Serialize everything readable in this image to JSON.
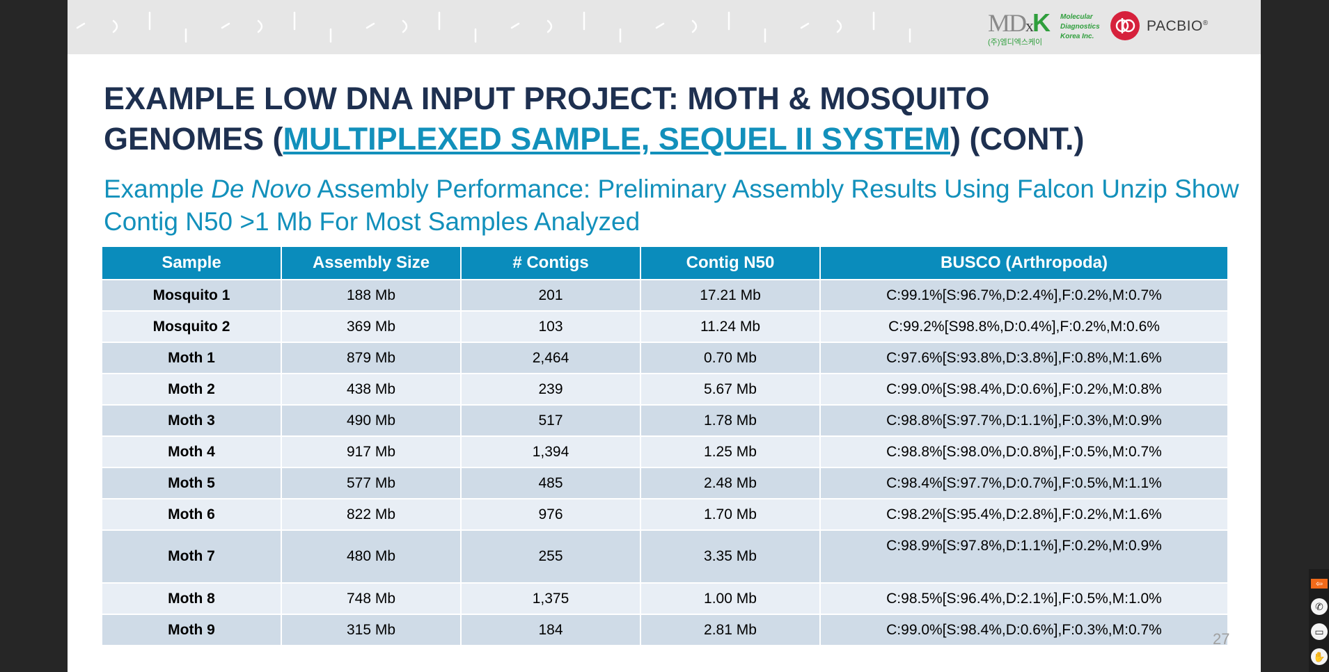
{
  "header": {
    "mdxk_logo": {
      "mark_md": "MD",
      "mark_x": "x",
      "mark_k": "K",
      "line1": "Molecular",
      "line2": "Diagnostics",
      "line3": "Korea Inc.",
      "korean": "(주)엠디엑스케이"
    },
    "pacbio_logo": {
      "text": "PACBIO",
      "reg": "®",
      "icon": "pacbio-circle-logo"
    }
  },
  "slide": {
    "title_line1": "EXAMPLE LOW DNA INPUT PROJECT:  MOTH & MOSQUITO",
    "title_line2_pre": "GENOMES (",
    "title_link": "MULTIPLEXED SAMPLE, SEQUEL II SYSTEM",
    "title_line2_post": ") (CONT.)",
    "subtitle_pre": "Example ",
    "subtitle_em": "De Novo",
    "subtitle_post": " Assembly Performance:  Preliminary Assembly Results Using Falcon Unzip Show Contig N50 >1 Mb For Most Samples Analyzed",
    "page_number": "27"
  },
  "table": {
    "headers": [
      "Sample",
      "Assembly Size",
      "# Contigs",
      "Contig N50",
      "BUSCO (Arthropoda)"
    ],
    "rows": [
      [
        "Mosquito 1",
        "188 Mb",
        "201",
        "17.21 Mb",
        "C:99.1%[S:96.7%,D:2.4%],F:0.2%,M:0.7%"
      ],
      [
        "Mosquito 2",
        "369 Mb",
        "103",
        "11.24 Mb",
        "C:99.2%[S98.8%,D:0.4%],F:0.2%,M:0.6%"
      ],
      [
        "Moth 1",
        "879 Mb",
        "2,464",
        "0.70 Mb",
        "C:97.6%[S:93.8%,D:3.8%],F:0.8%,M:1.6%"
      ],
      [
        "Moth 2",
        "438 Mb",
        "239",
        "5.67 Mb",
        "C:99.0%[S:98.4%,D:0.6%],F:0.2%,M:0.8%"
      ],
      [
        "Moth 3",
        "490 Mb",
        "517",
        "1.78 Mb",
        "C:98.8%[S:97.7%,D:1.1%],F:0.3%,M:0.9%"
      ],
      [
        "Moth 4",
        "917 Mb",
        "1,394",
        "1.25 Mb",
        "C:98.8%[S:98.0%,D:0.8%],F:0.5%,M:0.7%"
      ],
      [
        "Moth 5",
        "577 Mb",
        "485",
        "2.48 Mb",
        "C:98.4%[S:97.7%,D:0.7%],F:0.5%,M:1.1%"
      ],
      [
        "Moth 6",
        "822 Mb",
        "976",
        "1.70 Mb",
        "C:98.2%[S:95.4%,D:2.8%],F:0.2%,M:1.6%"
      ],
      [
        "Moth 7",
        "480 Mb",
        "255",
        "3.35 Mb",
        "C:98.9%[S:97.8%,D:1.1%],F:0.2%,M:0.9%"
      ],
      [
        "Moth 8",
        "748 Mb",
        "1,375",
        "1.00 Mb",
        "C:98.5%[S:96.4%,D:2.1%],F:0.5%,M:1.0%"
      ],
      [
        "Moth 9",
        "315 Mb",
        "184",
        "2.81 Mb",
        "C:99.0%[S:98.4%,D:0.6%],F:0.3%,M:0.7%"
      ]
    ]
  },
  "toolbar": {
    "buttons": [
      {
        "icon": "exit-arrow-icon",
        "glyph": "⇦"
      },
      {
        "icon": "phone-icon",
        "glyph": "✆"
      },
      {
        "icon": "window-icon",
        "glyph": "▭"
      },
      {
        "icon": "hand-icon",
        "glyph": "✋"
      }
    ]
  },
  "colors": {
    "title": "#1e3050",
    "accent": "#1290bb",
    "table_header": "#0a8cbc",
    "row_odd": "#cfdbe7",
    "row_even": "#e8eef5"
  }
}
